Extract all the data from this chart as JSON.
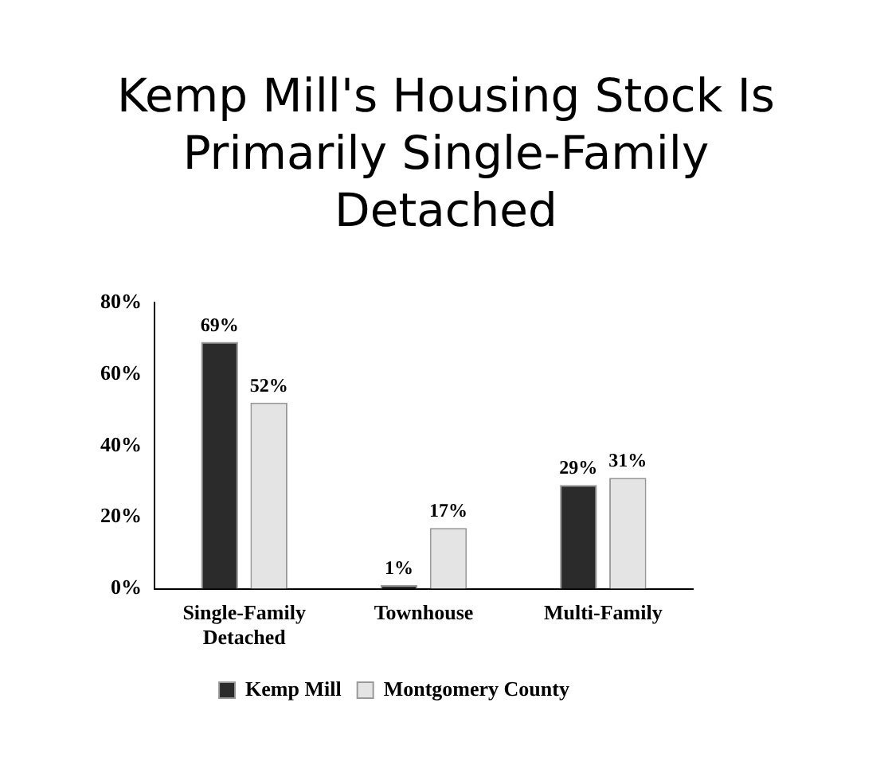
{
  "chart_data": {
    "type": "bar",
    "title": "Kemp Mill's Housing Stock Is Primarily Single-Family Detached",
    "categories": [
      "Single-Family Detached",
      "Townhouse",
      "Multi-Family"
    ],
    "series": [
      {
        "name": "Kemp Mill",
        "color": "#2b2b2b",
        "values": [
          69,
          1,
          29
        ],
        "value_labels": [
          "69%",
          "1%",
          "29%"
        ]
      },
      {
        "name": "Montgomery County",
        "color": "#e4e4e4",
        "values": [
          52,
          17,
          31
        ],
        "value_labels": [
          "52%",
          "17%",
          "31%"
        ]
      }
    ],
    "ylim": [
      0,
      80
    ],
    "yticks": [
      {
        "value": 0,
        "label": "0%"
      },
      {
        "value": 20,
        "label": "20%"
      },
      {
        "value": 40,
        "label": "40%"
      },
      {
        "value": 60,
        "label": "60%"
      },
      {
        "value": 80,
        "label": "80%"
      }
    ],
    "grid": false,
    "legend": "bottom"
  }
}
